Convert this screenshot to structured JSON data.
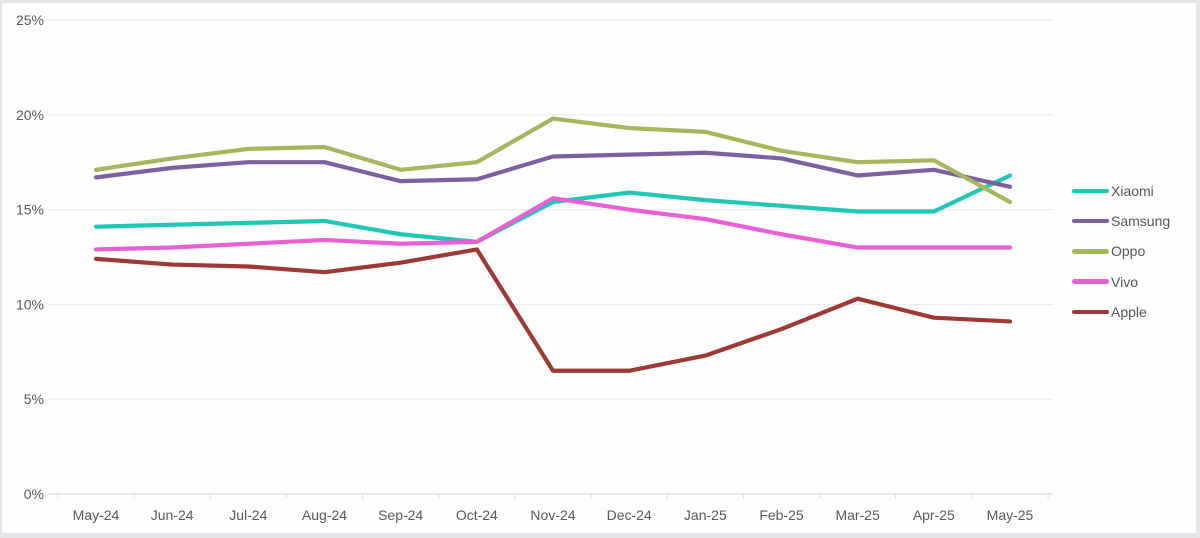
{
  "chart_data": {
    "type": "line",
    "title": "",
    "x_categories": [
      "May-24",
      "Jun-24",
      "Jul-24",
      "Aug-24",
      "Sep-24",
      "Oct-24",
      "Nov-24",
      "Dec-24",
      "Jan-25",
      "Feb-25",
      "Mar-25",
      "Apr-25",
      "May-25"
    ],
    "y_axis": {
      "min": 0,
      "max": 25,
      "step": 5,
      "tick_labels": [
        "0%",
        "5%",
        "10%",
        "15%",
        "20%",
        "25%"
      ],
      "format": "percent"
    },
    "grid": true,
    "legend_position": "right",
    "series": [
      {
        "name": "Xiaomi",
        "color": "#1fc8b6",
        "values": [
          14.1,
          14.2,
          14.3,
          14.4,
          13.7,
          13.3,
          15.4,
          15.9,
          15.5,
          15.2,
          14.9,
          14.9,
          16.8
        ]
      },
      {
        "name": "Samsung",
        "color": "#7d60a0",
        "values": [
          16.7,
          17.2,
          17.5,
          17.5,
          16.5,
          16.6,
          17.8,
          17.9,
          18.0,
          17.7,
          16.8,
          17.1,
          16.2
        ]
      },
      {
        "name": "Oppo",
        "color": "#a4b75c",
        "values": [
          17.1,
          17.7,
          18.2,
          18.3,
          17.1,
          17.5,
          19.8,
          19.3,
          19.1,
          18.1,
          17.5,
          17.6,
          15.4
        ]
      },
      {
        "name": "Vivo",
        "color": "#e95fd5",
        "values": [
          12.9,
          13.0,
          13.2,
          13.4,
          13.2,
          13.3,
          15.6,
          15.0,
          14.5,
          13.7,
          13.0,
          13.0,
          13.0
        ]
      },
      {
        "name": "Apple",
        "color": "#9e3a33",
        "values": [
          12.4,
          12.1,
          12.0,
          11.7,
          12.2,
          12.9,
          6.5,
          6.5,
          7.3,
          8.7,
          10.3,
          9.3,
          9.1
        ]
      }
    ]
  },
  "styles": {
    "grid_color": "#e9e8ea",
    "axis_line_color": "#d6d4d8",
    "tick_color": "#d9d7db",
    "axis_text_color": "#5a5a5a",
    "legend_text_color": "#57555a",
    "background": "#fdfdfe",
    "frame_border": "#e6e4e8"
  }
}
